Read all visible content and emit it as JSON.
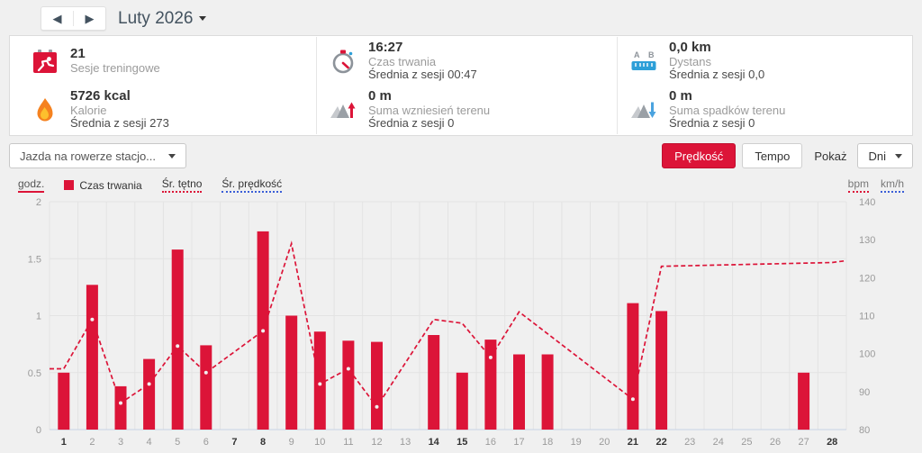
{
  "header": {
    "prev_label": "◀",
    "next_label": "▶",
    "month_title": "Luty 2026"
  },
  "stats": {
    "items": [
      {
        "icon": "calendar-runner",
        "value": "21",
        "label": "Sesje treningowe",
        "avg": ""
      },
      {
        "icon": "stopwatch",
        "value": "16:27",
        "label": "Czas trwania",
        "avg": "Średnia z sesji 00:47"
      },
      {
        "icon": "distance-ruler",
        "value": "0,0 km",
        "label": "Dystans",
        "avg": "Średnia z sesji 0,0"
      },
      {
        "icon": "flame",
        "value": "5726 kcal",
        "label": "Kalorie",
        "avg": "Średnia z sesji 273"
      },
      {
        "icon": "ascent-mountain",
        "value": "0 m",
        "label": "Suma wzniesień terenu",
        "avg": "Średnia z sesji 0"
      },
      {
        "icon": "descent-mountain",
        "value": "0 m",
        "label": "Suma spadków terenu",
        "avg": "Średnia z sesji 0"
      }
    ]
  },
  "controls": {
    "activity_filter_value": "Jazda na rowerze stacjo...",
    "speed_button": "Prędkość",
    "tempo_button": "Tempo",
    "show_label": "Pokaż",
    "interval_select_value": "Dni"
  },
  "legend": {
    "left_axis_unit": "godz.",
    "duration": "Czas trwania",
    "heart_rate": "Śr. tętno",
    "speed": "Śr. prędkość",
    "right_axis_unit_hr": "bpm",
    "right_axis_unit_speed": "km/h"
  },
  "colors": {
    "accent_red": "#dc1438",
    "accent_blue": "#3b5ed7",
    "icon_blue": "#2d9fd8",
    "grid": "#e3e3e3",
    "baseline": "#c9d3e6",
    "plot_bg": "#f0f0f0"
  },
  "chart_data": {
    "type": "bar+line combo",
    "title": "",
    "categories": [
      1,
      2,
      3,
      4,
      5,
      6,
      7,
      8,
      9,
      10,
      11,
      12,
      13,
      14,
      15,
      16,
      17,
      18,
      19,
      20,
      21,
      22,
      23,
      24,
      25,
      26,
      27,
      28
    ],
    "bold_days": [
      1,
      7,
      8,
      14,
      15,
      21,
      22,
      28
    ],
    "left_axis": {
      "label": "godz.",
      "min": 0,
      "max": 2,
      "ticks": [
        0,
        0.5,
        1,
        1.5,
        2
      ]
    },
    "right_axis": {
      "label": "bpm / km/h",
      "min": 80,
      "max": 140,
      "ticks": [
        80,
        90,
        100,
        110,
        120,
        130,
        140
      ]
    },
    "series": [
      {
        "name": "Czas trwania (godz.)",
        "type": "bar",
        "values": [
          0.5,
          1.27,
          0.38,
          0.62,
          1.58,
          0.74,
          null,
          1.74,
          1.0,
          0.86,
          0.78,
          0.77,
          null,
          0.83,
          0.5,
          0.79,
          0.66,
          0.66,
          null,
          null,
          1.11,
          1.04,
          null,
          null,
          null,
          null,
          0.5,
          null
        ]
      },
      {
        "name": "Śr. tętno (bpm)",
        "type": "line",
        "axis": "right",
        "values": [
          96,
          109,
          87,
          92,
          102,
          95,
          null,
          106,
          129,
          92,
          96,
          86,
          null,
          109,
          108,
          99,
          111,
          null,
          null,
          null,
          88,
          123,
          null,
          null,
          null,
          null,
          null,
          124
        ],
        "marker_days": [
          2,
          3,
          4,
          5,
          6,
          8,
          10,
          11,
          12,
          16,
          21
        ],
        "extends_to_plot_edges": true,
        "edge_end_value": 124.5
      },
      {
        "name": "Śr. prędkość (km/h)",
        "type": "line",
        "axis": "right",
        "values": [
          null,
          null,
          null,
          null,
          null,
          null,
          null,
          null,
          null,
          null,
          null,
          null,
          null,
          null,
          null,
          null,
          null,
          null,
          null,
          null,
          null,
          null,
          null,
          null,
          null,
          null,
          null,
          null
        ]
      }
    ]
  }
}
